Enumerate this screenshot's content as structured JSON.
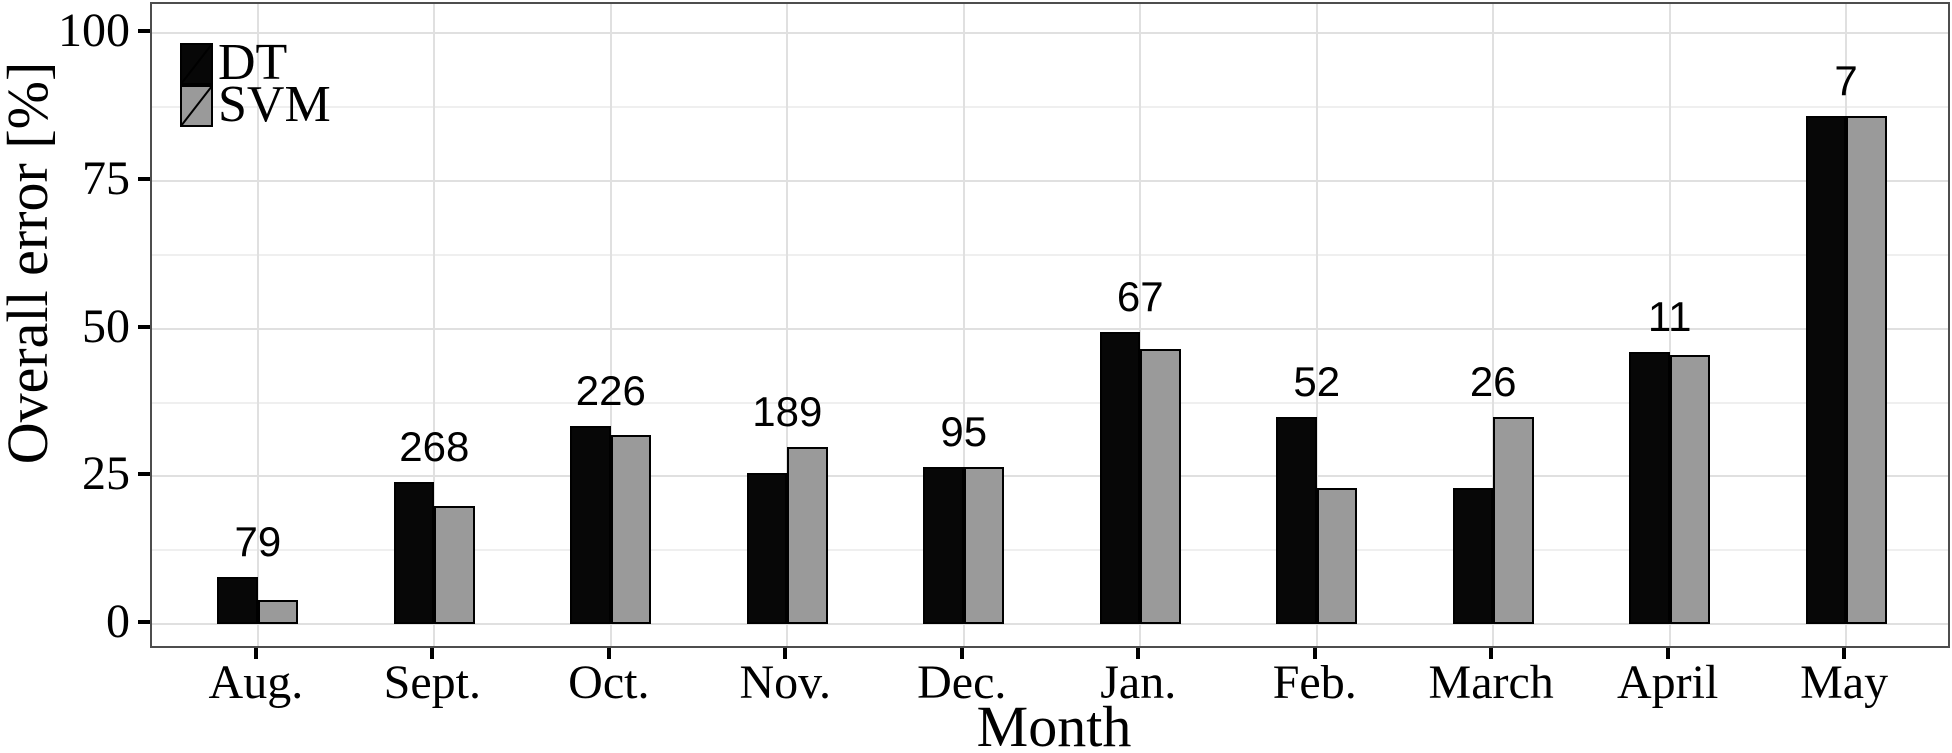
{
  "chart_data": {
    "type": "bar",
    "title": "",
    "xlabel": "Month",
    "ylabel": "Overall error [%]",
    "categories": [
      "Aug.",
      "Sept.",
      "Oct.",
      "Nov.",
      "Dec.",
      "Jan.",
      "Feb.",
      "March",
      "April",
      "May"
    ],
    "series": [
      {
        "name": "DT",
        "color": "#070707",
        "values": [
          8,
          24,
          33.5,
          25.5,
          26.5,
          49.5,
          35,
          23,
          46,
          86
        ]
      },
      {
        "name": "SVM",
        "color": "#9a9a9a",
        "values": [
          4,
          20,
          32,
          30,
          26.5,
          46.5,
          23,
          35,
          45.5,
          86
        ]
      }
    ],
    "bar_count_labels": [
      "79",
      "268",
      "226",
      "189",
      "95",
      "67",
      "52",
      "26",
      "11",
      "7"
    ],
    "ylim": [
      0,
      100
    ],
    "yticks": [
      0,
      25,
      50,
      75,
      100
    ],
    "minor_yticks": [
      12.5,
      37.5,
      62.5,
      87.5
    ],
    "grid": "horizontal major+minor, vertical major at category centers",
    "legend_position": "top-left inside panel",
    "bar_outline_color": "#000000"
  },
  "colors": {
    "panel_border": "#4d4d4d",
    "grid_major": "#e0e0e0",
    "grid_minor": "#efefef",
    "background": "#ffffff",
    "text": "#000000"
  }
}
